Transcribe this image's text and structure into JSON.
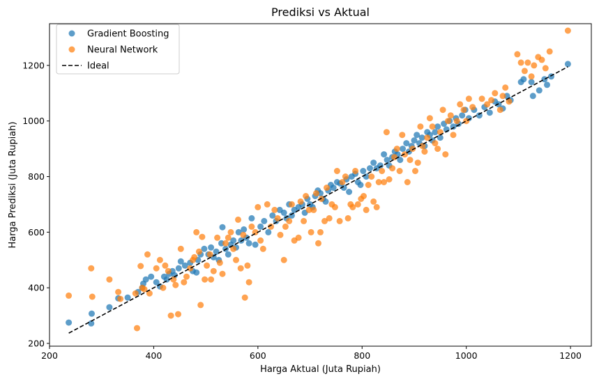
{
  "chart_data": {
    "type": "scatter",
    "title": "Prediksi vs Aktual",
    "xlabel": "Harga Aktual (Juta Rupiah)",
    "ylabel": "Harga Prediksi (Juta Rupiah)",
    "xlim": [
      200,
      1240
    ],
    "ylim": [
      190,
      1350
    ],
    "xticks": [
      200,
      400,
      600,
      800,
      1000,
      1200
    ],
    "yticks": [
      200,
      400,
      600,
      800,
      1000,
      1200
    ],
    "grid": false,
    "legend_position": "top-left",
    "series": [
      {
        "name": "Gradient Boosting",
        "color": "#1f77b4",
        "points": [
          [
            237,
            275
          ],
          [
            280,
            272
          ],
          [
            281,
            307
          ],
          [
            315,
            330
          ],
          [
            332,
            362
          ],
          [
            350,
            365
          ],
          [
            370,
            385
          ],
          [
            378,
            400
          ],
          [
            380,
            415
          ],
          [
            385,
            430
          ],
          [
            395,
            440
          ],
          [
            405,
            420
          ],
          [
            412,
            405
          ],
          [
            420,
            440
          ],
          [
            425,
            430
          ],
          [
            430,
            450
          ],
          [
            436,
            460
          ],
          [
            440,
            445
          ],
          [
            448,
            470
          ],
          [
            452,
            495
          ],
          [
            460,
            480
          ],
          [
            470,
            490
          ],
          [
            475,
            460
          ],
          [
            482,
            455
          ],
          [
            485,
            500
          ],
          [
            490,
            520
          ],
          [
            497,
            540
          ],
          [
            505,
            520
          ],
          [
            510,
            545
          ],
          [
            515,
            510
          ],
          [
            520,
            530
          ],
          [
            525,
            500
          ],
          [
            530,
            560
          ],
          [
            532,
            618
          ],
          [
            538,
            540
          ],
          [
            543,
            520
          ],
          [
            548,
            555
          ],
          [
            553,
            570
          ],
          [
            558,
            545
          ],
          [
            563,
            600
          ],
          [
            568,
            570
          ],
          [
            573,
            610
          ],
          [
            578,
            580
          ],
          [
            583,
            560
          ],
          [
            588,
            650
          ],
          [
            595,
            555
          ],
          [
            605,
            620
          ],
          [
            612,
            640
          ],
          [
            620,
            600
          ],
          [
            628,
            660
          ],
          [
            635,
            640
          ],
          [
            642,
            680
          ],
          [
            650,
            670
          ],
          [
            655,
            650
          ],
          [
            660,
            700
          ],
          [
            665,
            660
          ],
          [
            670,
            680
          ],
          [
            678,
            690
          ],
          [
            685,
            700
          ],
          [
            690,
            670
          ],
          [
            695,
            720
          ],
          [
            700,
            700
          ],
          [
            705,
            690
          ],
          [
            710,
            730
          ],
          [
            715,
            750
          ],
          [
            720,
            740
          ],
          [
            725,
            720
          ],
          [
            730,
            710
          ],
          [
            735,
            750
          ],
          [
            740,
            770
          ],
          [
            745,
            760
          ],
          [
            752,
            780
          ],
          [
            758,
            775
          ],
          [
            765,
            760
          ],
          [
            770,
            790
          ],
          [
            775,
            745
          ],
          [
            780,
            800
          ],
          [
            787,
            810
          ],
          [
            792,
            780
          ],
          [
            797,
            770
          ],
          [
            802,
            820
          ],
          [
            808,
            800
          ],
          [
            815,
            830
          ],
          [
            822,
            850
          ],
          [
            828,
            830
          ],
          [
            835,
            840
          ],
          [
            842,
            880
          ],
          [
            848,
            860
          ],
          [
            852,
            840
          ],
          [
            858,
            870
          ],
          [
            863,
            890
          ],
          [
            868,
            880
          ],
          [
            873,
            860
          ],
          [
            878,
            900
          ],
          [
            885,
            920
          ],
          [
            890,
            890
          ],
          [
            895,
            910
          ],
          [
            900,
            930
          ],
          [
            905,
            950
          ],
          [
            910,
            920
          ],
          [
            915,
            940
          ],
          [
            920,
            910
          ],
          [
            925,
            960
          ],
          [
            930,
            950
          ],
          [
            935,
            930
          ],
          [
            940,
            960
          ],
          [
            945,
            980
          ],
          [
            950,
            940
          ],
          [
            957,
            990
          ],
          [
            962,
            970
          ],
          [
            968,
            1000
          ],
          [
            975,
            980
          ],
          [
            980,
            1010
          ],
          [
            985,
            990
          ],
          [
            992,
            1020
          ],
          [
            998,
            1040
          ],
          [
            1005,
            1010
          ],
          [
            1015,
            1040
          ],
          [
            1025,
            1020
          ],
          [
            1035,
            1050
          ],
          [
            1045,
            1030
          ],
          [
            1055,
            1070
          ],
          [
            1062,
            1060
          ],
          [
            1070,
            1045
          ],
          [
            1078,
            1090
          ],
          [
            1085,
            1075
          ],
          [
            1105,
            1140
          ],
          [
            1110,
            1150
          ],
          [
            1125,
            1140
          ],
          [
            1128,
            1090
          ],
          [
            1140,
            1110
          ],
          [
            1150,
            1150
          ],
          [
            1155,
            1130
          ],
          [
            1163,
            1160
          ],
          [
            1195,
            1205
          ]
        ]
      },
      {
        "name": "Neural Network",
        "color": "#ff7f0e",
        "points": [
          [
            237,
            372
          ],
          [
            280,
            470
          ],
          [
            282,
            368
          ],
          [
            315,
            430
          ],
          [
            332,
            385
          ],
          [
            336,
            360
          ],
          [
            365,
            380
          ],
          [
            368,
            255
          ],
          [
            375,
            478
          ],
          [
            378,
            400
          ],
          [
            382,
            395
          ],
          [
            388,
            520
          ],
          [
            392,
            380
          ],
          [
            405,
            470
          ],
          [
            412,
            500
          ],
          [
            418,
            400
          ],
          [
            422,
            480
          ],
          [
            428,
            460
          ],
          [
            433,
            300
          ],
          [
            438,
            430
          ],
          [
            442,
            410
          ],
          [
            447,
            305
          ],
          [
            452,
            540
          ],
          [
            458,
            420
          ],
          [
            463,
            440
          ],
          [
            470,
            470
          ],
          [
            475,
            500
          ],
          [
            478,
            510
          ],
          [
            482,
            600
          ],
          [
            487,
            530
          ],
          [
            490,
            338
          ],
          [
            493,
            583
          ],
          [
            498,
            430
          ],
          [
            502,
            480
          ],
          [
            508,
            520
          ],
          [
            510,
            430
          ],
          [
            515,
            460
          ],
          [
            522,
            580
          ],
          [
            527,
            490
          ],
          [
            532,
            450
          ],
          [
            538,
            560
          ],
          [
            543,
            580
          ],
          [
            548,
            600
          ],
          [
            553,
            540
          ],
          [
            558,
            500
          ],
          [
            562,
            645
          ],
          [
            567,
            470
          ],
          [
            572,
            590
          ],
          [
            575,
            365
          ],
          [
            580,
            480
          ],
          [
            583,
            420
          ],
          [
            588,
            620
          ],
          [
            595,
            600
          ],
          [
            600,
            690
          ],
          [
            605,
            570
          ],
          [
            610,
            540
          ],
          [
            618,
            700
          ],
          [
            625,
            620
          ],
          [
            632,
            680
          ],
          [
            638,
            650
          ],
          [
            643,
            590
          ],
          [
            650,
            500
          ],
          [
            653,
            620
          ],
          [
            660,
            640
          ],
          [
            665,
            700
          ],
          [
            670,
            570
          ],
          [
            678,
            580
          ],
          [
            682,
            710
          ],
          [
            688,
            640
          ],
          [
            692,
            730
          ],
          [
            698,
            680
          ],
          [
            702,
            600
          ],
          [
            707,
            680
          ],
          [
            712,
            740
          ],
          [
            716,
            560
          ],
          [
            720,
            600
          ],
          [
            722,
            720
          ],
          [
            728,
            640
          ],
          [
            732,
            760
          ],
          [
            737,
            650
          ],
          [
            742,
            700
          ],
          [
            748,
            690
          ],
          [
            752,
            820
          ],
          [
            757,
            640
          ],
          [
            762,
            780
          ],
          [
            768,
            800
          ],
          [
            773,
            650
          ],
          [
            778,
            700
          ],
          [
            782,
            690
          ],
          [
            787,
            820
          ],
          [
            792,
            700
          ],
          [
            798,
            720
          ],
          [
            803,
            730
          ],
          [
            808,
            680
          ],
          [
            812,
            770
          ],
          [
            818,
            800
          ],
          [
            822,
            710
          ],
          [
            828,
            690
          ],
          [
            832,
            780
          ],
          [
            838,
            820
          ],
          [
            842,
            780
          ],
          [
            847,
            960
          ],
          [
            852,
            790
          ],
          [
            858,
            830
          ],
          [
            862,
            870
          ],
          [
            867,
            900
          ],
          [
            872,
            820
          ],
          [
            877,
            950
          ],
          [
            882,
            880
          ],
          [
            887,
            780
          ],
          [
            892,
            860
          ],
          [
            897,
            900
          ],
          [
            902,
            820
          ],
          [
            907,
            850
          ],
          [
            912,
            980
          ],
          [
            916,
            910
          ],
          [
            920,
            890
          ],
          [
            925,
            940
          ],
          [
            930,
            1010
          ],
          [
            935,
            980
          ],
          [
            940,
            920
          ],
          [
            945,
            900
          ],
          [
            950,
            960
          ],
          [
            955,
            1040
          ],
          [
            960,
            880
          ],
          [
            965,
            1000
          ],
          [
            970,
            1020
          ],
          [
            975,
            950
          ],
          [
            982,
            1000
          ],
          [
            988,
            1060
          ],
          [
            995,
            1040
          ],
          [
            1000,
            1000
          ],
          [
            1005,
            1080
          ],
          [
            1012,
            1050
          ],
          [
            1030,
            1080
          ],
          [
            1040,
            1060
          ],
          [
            1048,
            1075
          ],
          [
            1055,
            1100
          ],
          [
            1065,
            1040
          ],
          [
            1070,
            1090
          ],
          [
            1075,
            1120
          ],
          [
            1082,
            1070
          ],
          [
            1098,
            1240
          ],
          [
            1105,
            1210
          ],
          [
            1112,
            1180
          ],
          [
            1118,
            1210
          ],
          [
            1125,
            1160
          ],
          [
            1130,
            1200
          ],
          [
            1138,
            1230
          ],
          [
            1145,
            1220
          ],
          [
            1152,
            1190
          ],
          [
            1160,
            1250
          ],
          [
            1195,
            1325
          ]
        ]
      }
    ],
    "reference_line": {
      "name": "Ideal",
      "color": "#000000",
      "style": "dashed",
      "from": [
        237,
        237
      ],
      "to": [
        1195,
        1195
      ]
    }
  }
}
